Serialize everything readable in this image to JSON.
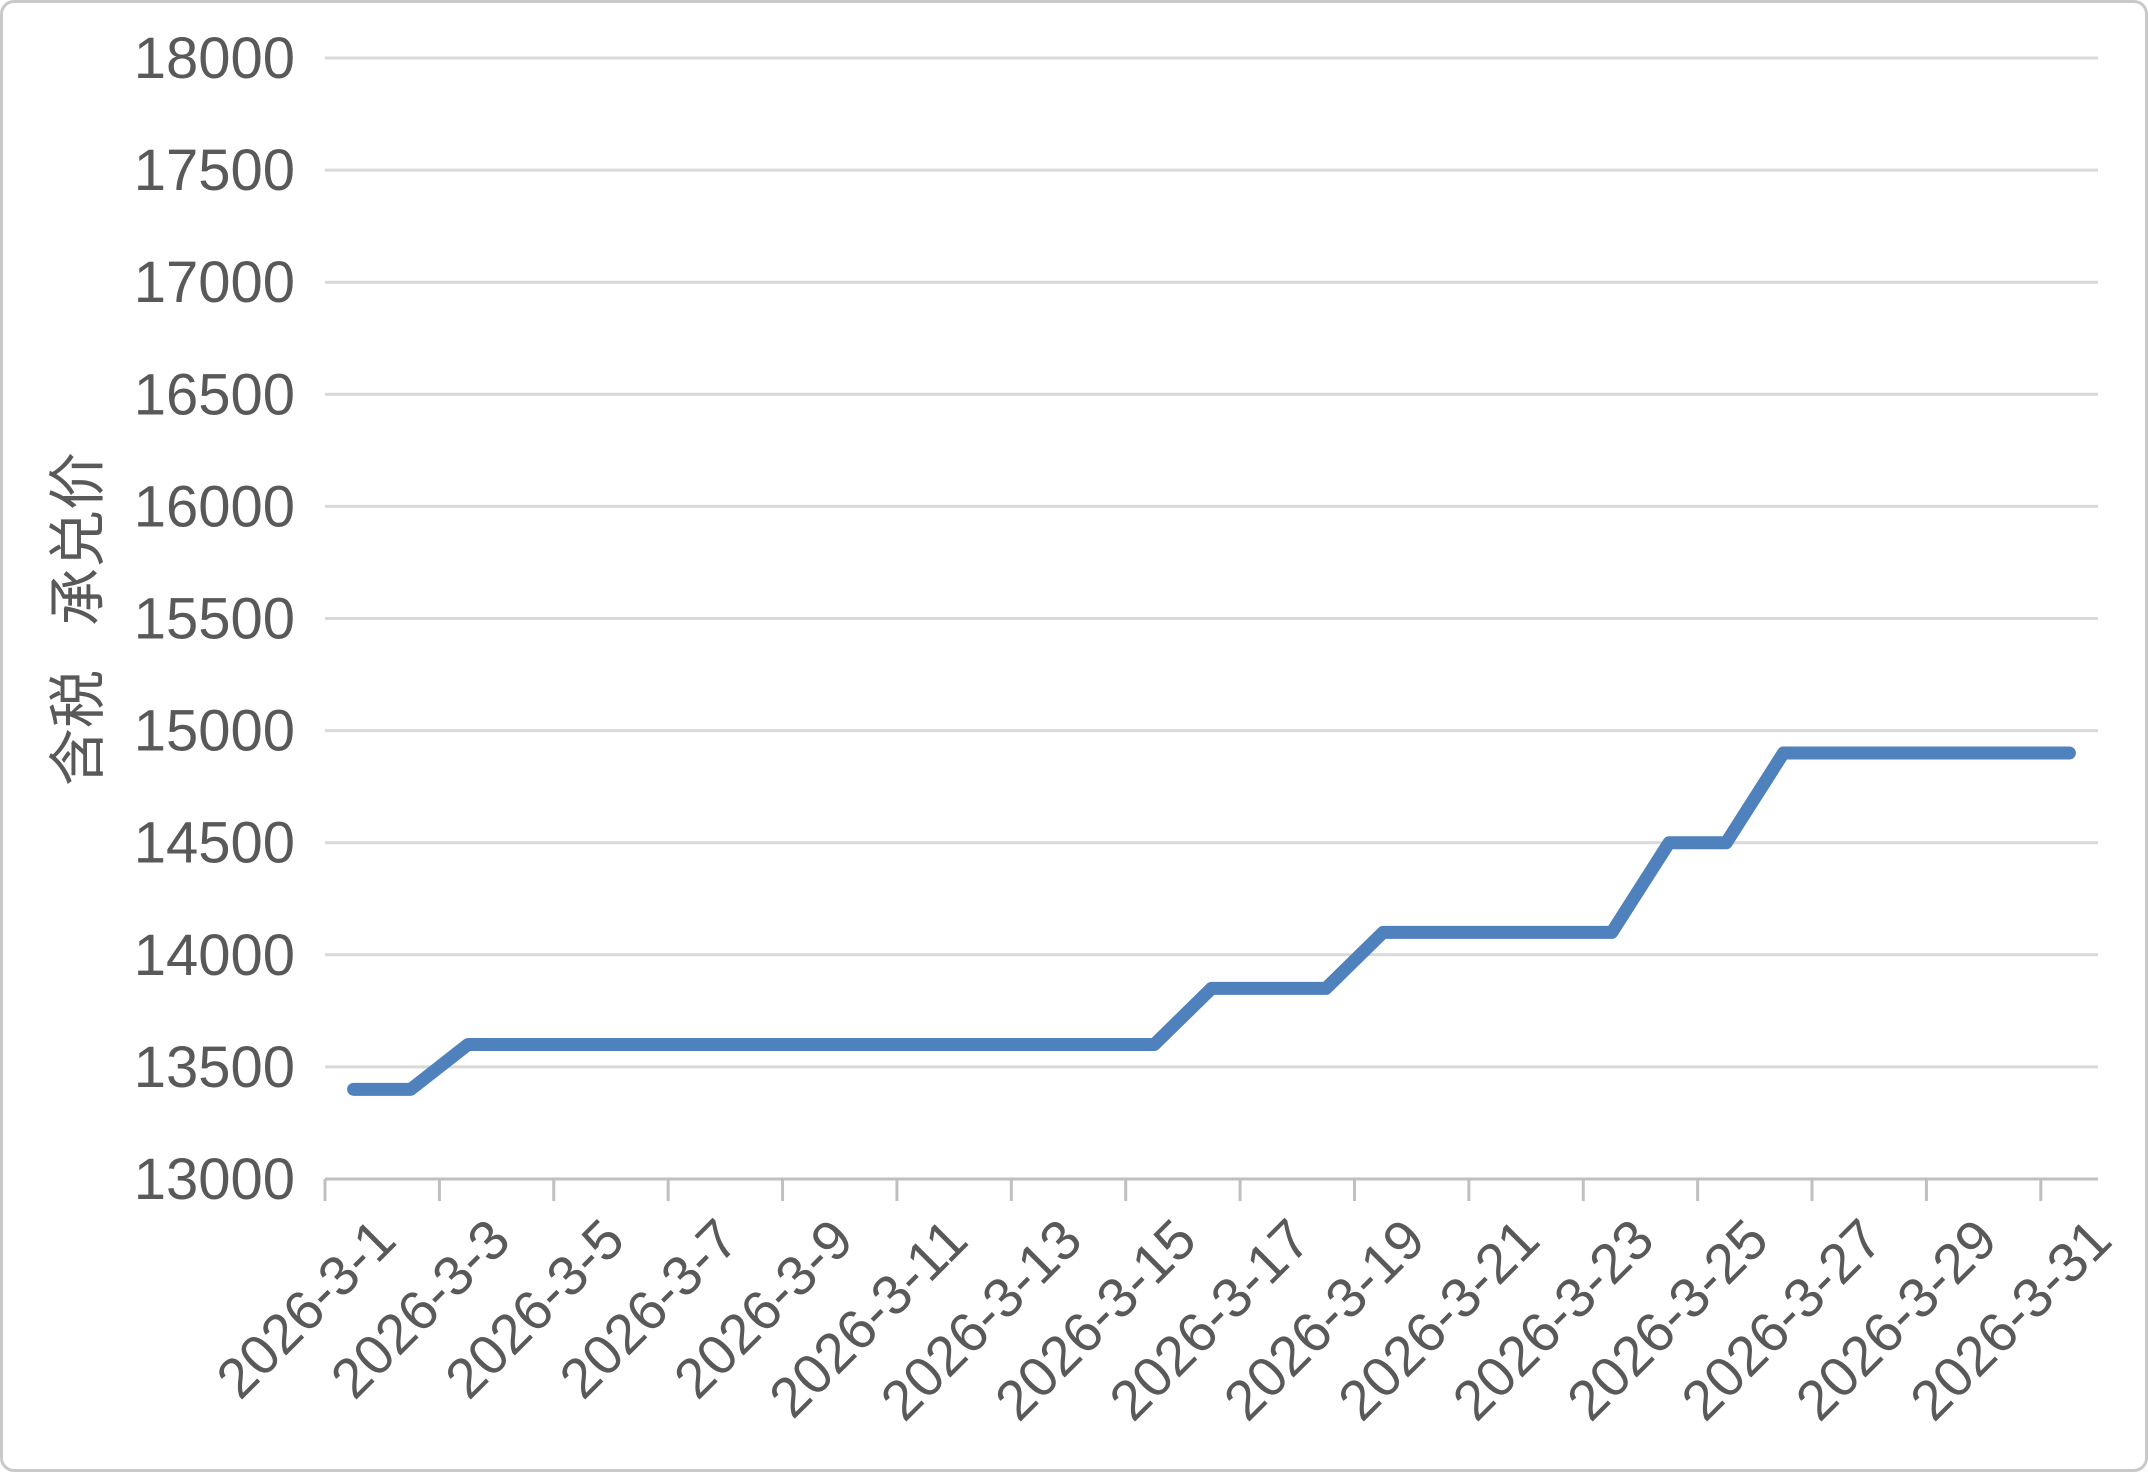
{
  "chart_data": {
    "type": "line",
    "title": "",
    "xlabel": "",
    "ylabel": "含税 承兑价",
    "x": [
      "2026-3-1",
      "2026-3-2",
      "2026-3-3",
      "2026-3-4",
      "2026-3-5",
      "2026-3-6",
      "2026-3-7",
      "2026-3-8",
      "2026-3-9",
      "2026-3-10",
      "2026-3-11",
      "2026-3-12",
      "2026-3-13",
      "2026-3-14",
      "2026-3-15",
      "2026-3-16",
      "2026-3-17",
      "2026-3-18",
      "2026-3-19",
      "2026-3-20",
      "2026-3-21",
      "2026-3-22",
      "2026-3-23",
      "2026-3-24",
      "2026-3-25",
      "2026-3-26",
      "2026-3-27",
      "2026-3-28",
      "2026-3-29",
      "2026-3-30",
      "2026-3-31"
    ],
    "series": [
      {
        "name": "含税 承兑价",
        "values": [
          13400,
          13400,
          13600,
          13600,
          13600,
          13600,
          13600,
          13600,
          13600,
          13600,
          13600,
          13600,
          13600,
          13600,
          13600,
          13850,
          13850,
          13850,
          14100,
          14100,
          14100,
          14100,
          14100,
          14500,
          14500,
          14900,
          14900,
          14900,
          14900,
          14900,
          14900
        ]
      }
    ],
    "ylim": [
      13000,
      18000
    ],
    "yticks": [
      13000,
      13500,
      14000,
      14500,
      15000,
      15500,
      16000,
      16500,
      17000,
      17500,
      18000
    ],
    "xtick_labels": [
      "2026-3-1",
      "2026-3-3",
      "2026-3-5",
      "2026-3-7",
      "2026-3-9",
      "2026-3-11",
      "2026-3-13",
      "2026-3-15",
      "2026-3-17",
      "2026-3-19",
      "2026-3-21",
      "2026-3-23",
      "2026-3-25",
      "2026-3-27",
      "2026-3-29",
      "2026-3-31"
    ],
    "xtick_interval": 2,
    "grid": true,
    "legend": "none",
    "colors": {
      "line": "#4F81BD",
      "gridline": "#D9D9D9",
      "axis": "#BFBFBF",
      "text": "#595959",
      "frame_border": "#C9C9C9"
    }
  }
}
